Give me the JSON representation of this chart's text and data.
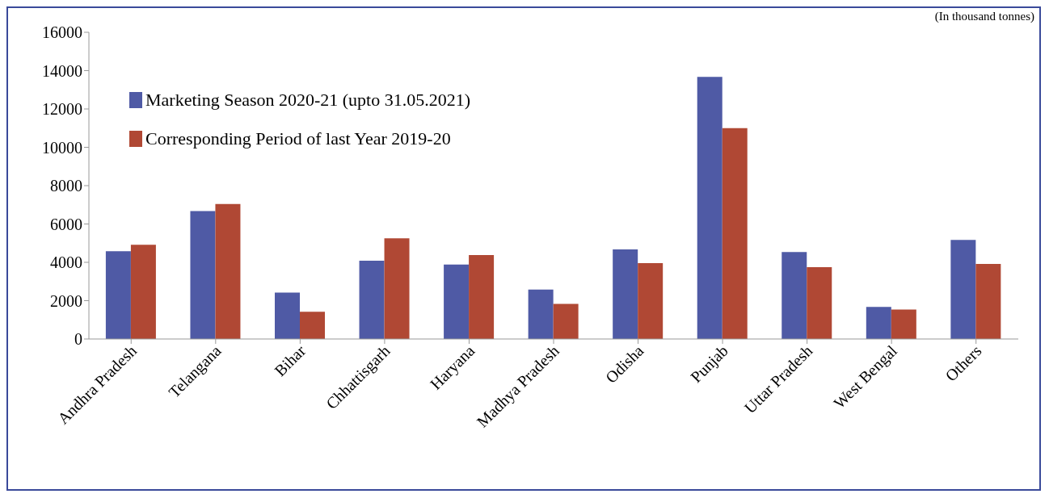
{
  "chart_data": {
    "type": "bar",
    "annotations": [
      "(In thousand tonnes)"
    ],
    "categories": [
      "Andhra Pradesh",
      "Telangana",
      "Bihar",
      "Chhattisgarh",
      "Haryana",
      "Madhya Pradesh",
      "Odisha",
      "Punjab",
      "Uttar Pradesh",
      "West Bengal",
      "Others"
    ],
    "series": [
      {
        "name": "Marketing Season 2020-21 (upto 31.05.2021)",
        "color": "#4f5aa5",
        "values": [
          4580,
          6670,
          2420,
          4080,
          3880,
          2580,
          4670,
          13670,
          4540,
          1670,
          5170
        ]
      },
      {
        "name": "Corresponding Period of last Year 2019-20",
        "color": "#b04834",
        "values": [
          4920,
          7040,
          1420,
          5250,
          4380,
          1830,
          3960,
          11000,
          3750,
          1540,
          3920
        ]
      }
    ],
    "ylim": [
      0,
      16000
    ],
    "yticks": [
      0,
      2000,
      4000,
      6000,
      8000,
      10000,
      12000,
      14000,
      16000
    ],
    "grid": false,
    "legend": "top left"
  }
}
